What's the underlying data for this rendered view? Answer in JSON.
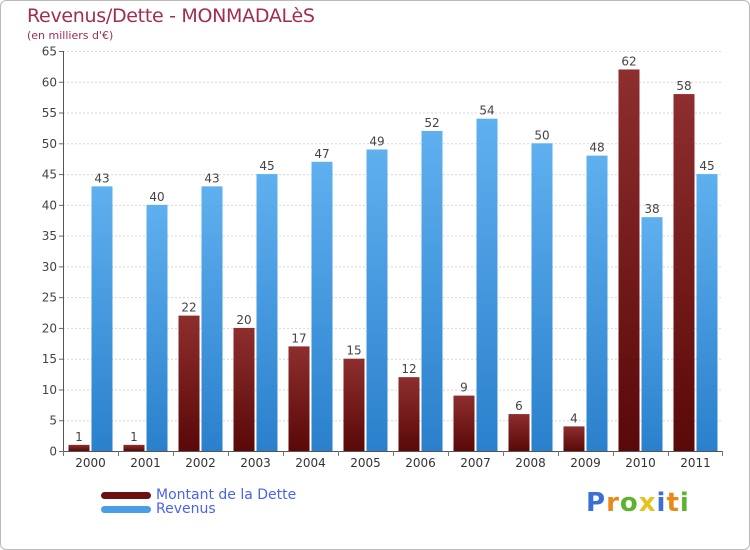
{
  "title": "Revenus/Dette - MONMADALèS",
  "subtitle": "(en milliers d'€)",
  "logo": {
    "letters": [
      "P",
      "r",
      "o",
      "x",
      "i",
      "t",
      "i"
    ],
    "colors": [
      "#3a6fd8",
      "#e88a1a",
      "#5cb32e",
      "#e8c21a",
      "#3a6fd8",
      "#e88a1a",
      "#5cb32e"
    ]
  },
  "chart_data": {
    "type": "bar",
    "title": "Revenus/Dette - MONMADALèS",
    "subtitle": "(en milliers d'€)",
    "categories": [
      "2000",
      "2001",
      "2002",
      "2003",
      "2004",
      "2005",
      "2006",
      "2007",
      "2008",
      "2009",
      "2010",
      "2011"
    ],
    "series": [
      {
        "name": "Montant de la Dette",
        "color": "#7a1c1c",
        "values": [
          1,
          1,
          22,
          20,
          17,
          15,
          12,
          9,
          6,
          4,
          62,
          58
        ]
      },
      {
        "name": "Revenus",
        "color": "#4a9ee6",
        "values": [
          43,
          40,
          43,
          45,
          47,
          49,
          52,
          54,
          50,
          48,
          38,
          45
        ]
      }
    ],
    "ylim": [
      0,
      65
    ],
    "yticks": [
      0,
      5,
      10,
      15,
      20,
      25,
      30,
      35,
      40,
      45,
      50,
      55,
      60,
      65
    ],
    "grid": true,
    "legend": "bottom-left"
  }
}
